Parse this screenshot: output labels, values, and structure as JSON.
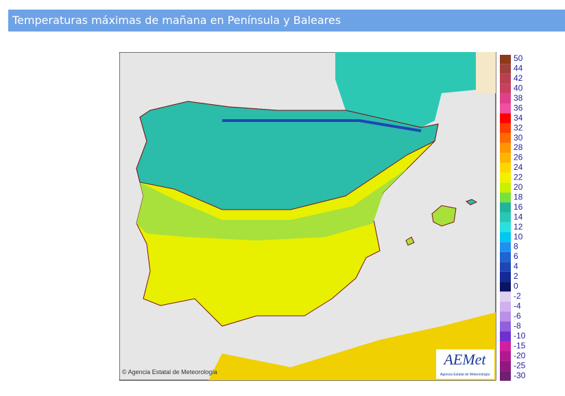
{
  "header": {
    "title": "Temperaturas máximas de mañana en Península y Baleares"
  },
  "map": {
    "copyright": "© Agencia Estatal de Meteorología",
    "logo": {
      "name": "AEMet",
      "subtitle": "Agencia Estatal de Meteorología"
    }
  },
  "legend": {
    "upper": [
      {
        "label": "50",
        "color": "#8b3a1a"
      },
      {
        "label": "44",
        "color": "#a0403a"
      },
      {
        "label": "42",
        "color": "#b84050"
      },
      {
        "label": "40",
        "color": "#c84060"
      },
      {
        "label": "38",
        "color": "#e0408a"
      },
      {
        "label": "36",
        "color": "#f050a0"
      },
      {
        "label": "34",
        "color": "#ff0000"
      },
      {
        "label": "32",
        "color": "#ff3c00"
      },
      {
        "label": "30",
        "color": "#ff6a00"
      },
      {
        "label": "28",
        "color": "#ff9600"
      },
      {
        "label": "26",
        "color": "#ffb400"
      },
      {
        "label": "24",
        "color": "#ffd700"
      },
      {
        "label": "22",
        "color": "#f0f000"
      },
      {
        "label": "20",
        "color": "#c8f000"
      },
      {
        "label": "18",
        "color": "#78e040"
      },
      {
        "label": "16",
        "color": "#20b4a0"
      },
      {
        "label": "14",
        "color": "#28c8b4"
      },
      {
        "label": "12",
        "color": "#28e0e0"
      },
      {
        "label": "10",
        "color": "#00c8f0"
      },
      {
        "label": "8",
        "color": "#2090f0"
      },
      {
        "label": "6",
        "color": "#1e64d2"
      },
      {
        "label": "4",
        "color": "#1e46b4"
      },
      {
        "label": "2",
        "color": "#142896"
      },
      {
        "label": "0",
        "color": "#0a1464"
      }
    ],
    "lower": [
      {
        "label": "-2",
        "color": "#e0d0f0"
      },
      {
        "label": "-4",
        "color": "#d0b0f0"
      },
      {
        "label": "-6",
        "color": "#b890e8"
      },
      {
        "label": "-8",
        "color": "#9060e0"
      },
      {
        "label": "-10",
        "color": "#7030d0"
      },
      {
        "label": "-15",
        "color": "#d020a0"
      },
      {
        "label": "-20",
        "color": "#b01890"
      },
      {
        "label": "-25",
        "color": "#901880"
      },
      {
        "label": "-30",
        "color": "#702070"
      }
    ]
  }
}
